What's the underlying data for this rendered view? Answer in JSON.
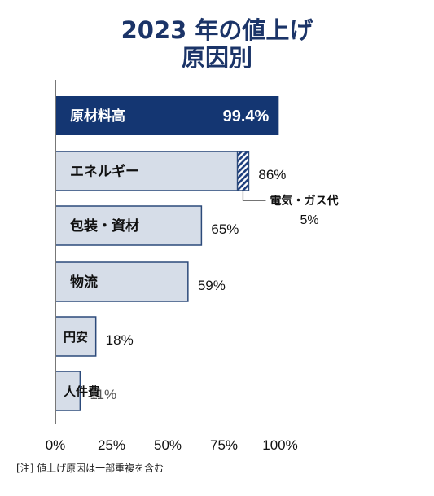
{
  "title_line1": "2023 年の値上げ",
  "title_line2": "原因別",
  "note": "[注] 値上げ原因は一部重複を含む",
  "colors": {
    "title": "#1b3468",
    "highlight_fill": "#143672",
    "bar_fill": "#d6dde8",
    "bar_stroke": "#2c4a7a",
    "axis": "#777777",
    "hatch": "#1e3f7e"
  },
  "chart_data": {
    "type": "bar",
    "orientation": "horizontal",
    "categories": [
      "原材料高",
      "エネルギー",
      "包装・資材",
      "物流",
      "円安",
      "人件費"
    ],
    "values": [
      99.4,
      86,
      65,
      59,
      18,
      11
    ],
    "value_labels": [
      "99.4%",
      "86%",
      "65%",
      "59%",
      "18%",
      "11%"
    ],
    "highlighted": "原材料高",
    "sub_segment": {
      "category": "エネルギー",
      "name": "電気・ガス代",
      "value": 5,
      "label": "5%"
    },
    "xlim": [
      0,
      100
    ],
    "xticks": [
      "0%",
      "25%",
      "50%",
      "75%",
      "100%"
    ],
    "grid": false
  }
}
